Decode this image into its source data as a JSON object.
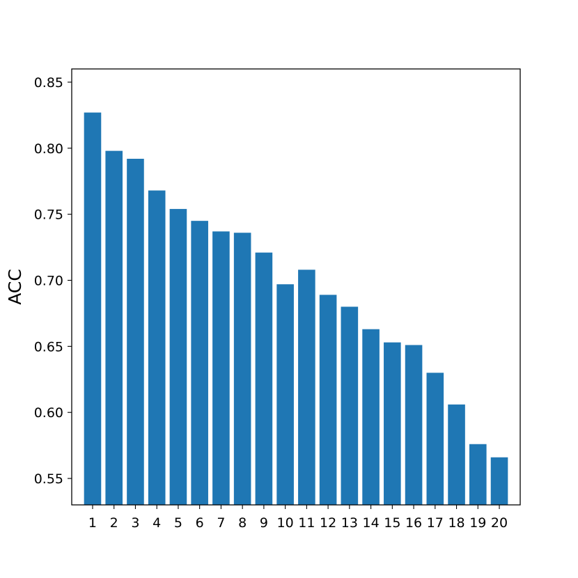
{
  "chart_data": {
    "type": "bar",
    "title": "",
    "xlabel": "",
    "ylabel": "ACC",
    "categories": [
      "1",
      "2",
      "3",
      "4",
      "5",
      "6",
      "7",
      "8",
      "9",
      "10",
      "11",
      "12",
      "13",
      "14",
      "15",
      "16",
      "17",
      "18",
      "19",
      "20"
    ],
    "values": [
      0.827,
      0.798,
      0.792,
      0.768,
      0.754,
      0.745,
      0.737,
      0.736,
      0.721,
      0.697,
      0.708,
      0.689,
      0.68,
      0.663,
      0.653,
      0.651,
      0.63,
      0.606,
      0.576,
      0.566
    ],
    "ylim": [
      0.53,
      0.86
    ],
    "yticks": [
      "0.55",
      "0.60",
      "0.65",
      "0.70",
      "0.75",
      "0.80",
      "0.85"
    ],
    "grid": false,
    "bar_color": "#1f77b4"
  }
}
